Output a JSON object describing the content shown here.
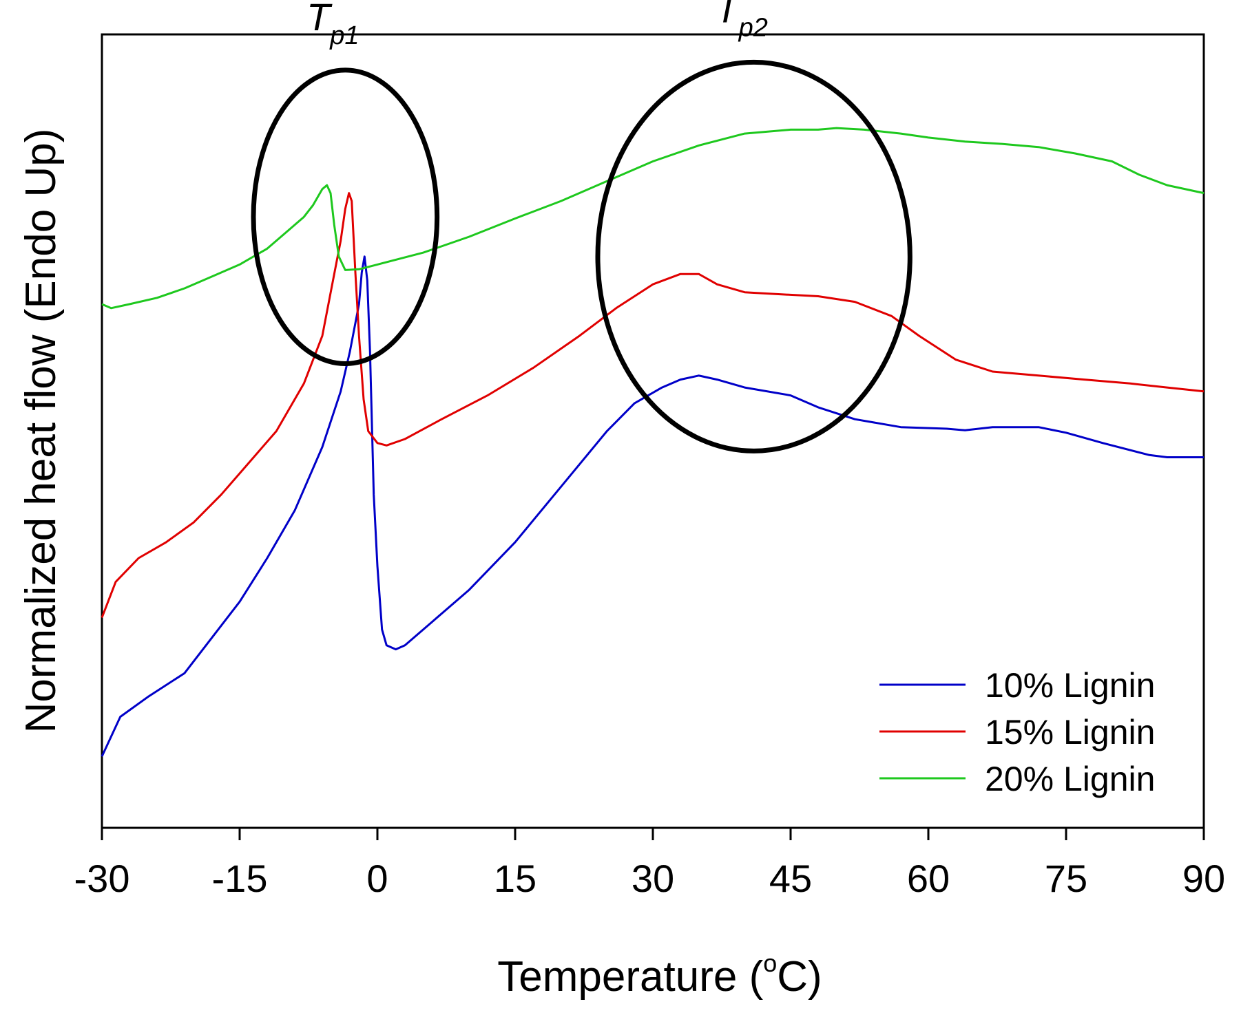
{
  "chart_data": {
    "type": "line",
    "title": "",
    "xlabel": "Temperature (°C)",
    "xlabel_parts": {
      "main": "Temperature (",
      "sup": "o",
      "unit": "C)"
    },
    "ylabel": "Normalized heat flow (Endo Up)",
    "ylabel_parts": {
      "pre": "Normalized heat flow ",
      "post": "(Endo Up)"
    },
    "xlim": [
      -30,
      90
    ],
    "ylim": [
      0,
      100
    ],
    "y_tick_labels_shown": false,
    "x_ticks": [
      -30,
      -15,
      0,
      15,
      30,
      45,
      60,
      75,
      90
    ],
    "x_tick_labels": [
      "-30",
      "-15",
      "0",
      "15",
      "30",
      "45",
      "60",
      "75",
      "90"
    ],
    "grid": false,
    "legend_position": "bottom-right",
    "series": [
      {
        "name": "10% Lignin",
        "color": "#0000c8",
        "points": [
          [
            -30,
            9
          ],
          [
            -28,
            14
          ],
          [
            -25,
            16.5
          ],
          [
            -21,
            19.5
          ],
          [
            -18,
            24
          ],
          [
            -15,
            28.5
          ],
          [
            -12,
            34
          ],
          [
            -9,
            40
          ],
          [
            -6,
            48
          ],
          [
            -4,
            55
          ],
          [
            -3,
            60
          ],
          [
            -2,
            66
          ],
          [
            -1.7,
            70
          ],
          [
            -1.4,
            72
          ],
          [
            -1.1,
            69
          ],
          [
            -0.8,
            60
          ],
          [
            -0.4,
            42
          ],
          [
            0,
            33
          ],
          [
            0.5,
            25
          ],
          [
            1,
            23
          ],
          [
            2,
            22.5
          ],
          [
            3,
            23
          ],
          [
            6,
            26
          ],
          [
            10,
            30
          ],
          [
            15,
            36
          ],
          [
            20,
            43
          ],
          [
            25,
            50
          ],
          [
            28,
            53.5
          ],
          [
            31,
            55.5
          ],
          [
            33,
            56.5
          ],
          [
            35,
            57
          ],
          [
            37,
            56.5
          ],
          [
            40,
            55.5
          ],
          [
            45,
            54.5
          ],
          [
            48,
            53
          ],
          [
            52,
            51.5
          ],
          [
            57,
            50.5
          ],
          [
            62,
            50.3
          ],
          [
            64,
            50.1
          ],
          [
            67,
            50.5
          ],
          [
            72,
            50.5
          ],
          [
            75,
            49.8
          ],
          [
            79,
            48.5
          ],
          [
            84,
            47
          ],
          [
            86,
            46.7
          ],
          [
            90,
            46.7
          ]
        ]
      },
      {
        "name": "15% Lignin",
        "color": "#e00000",
        "points": [
          [
            -30,
            26.5
          ],
          [
            -28.5,
            31
          ],
          [
            -26,
            34
          ],
          [
            -23,
            36
          ],
          [
            -20,
            38.5
          ],
          [
            -17,
            42
          ],
          [
            -14,
            46
          ],
          [
            -11,
            50
          ],
          [
            -8,
            56
          ],
          [
            -6,
            62
          ],
          [
            -5,
            68
          ],
          [
            -4,
            74
          ],
          [
            -3.5,
            78
          ],
          [
            -3.1,
            80
          ],
          [
            -2.8,
            79
          ],
          [
            -2.4,
            70
          ],
          [
            -2,
            62
          ],
          [
            -1.5,
            54
          ],
          [
            -1,
            50
          ],
          [
            0,
            48.5
          ],
          [
            1,
            48.2
          ],
          [
            3,
            49
          ],
          [
            7,
            51.5
          ],
          [
            12,
            54.5
          ],
          [
            17,
            58
          ],
          [
            22,
            62
          ],
          [
            26,
            65.5
          ],
          [
            30,
            68.5
          ],
          [
            33,
            69.8
          ],
          [
            35,
            69.8
          ],
          [
            37,
            68.5
          ],
          [
            40,
            67.5
          ],
          [
            43,
            67.3
          ],
          [
            48,
            67
          ],
          [
            52,
            66.3
          ],
          [
            56,
            64.5
          ],
          [
            59,
            62
          ],
          [
            63,
            59
          ],
          [
            67,
            57.5
          ],
          [
            72,
            57
          ],
          [
            77,
            56.5
          ],
          [
            82,
            56
          ],
          [
            86,
            55.5
          ],
          [
            90,
            55
          ]
        ]
      },
      {
        "name": "20% Lignin",
        "color": "#1ec81e",
        "points": [
          [
            -30,
            66
          ],
          [
            -29,
            65.5
          ],
          [
            -27,
            66
          ],
          [
            -24,
            66.8
          ],
          [
            -21,
            68
          ],
          [
            -18,
            69.5
          ],
          [
            -15,
            71
          ],
          [
            -12,
            73
          ],
          [
            -10,
            75
          ],
          [
            -8,
            77
          ],
          [
            -7,
            78.5
          ],
          [
            -6,
            80.5
          ],
          [
            -5.5,
            81
          ],
          [
            -5.1,
            80
          ],
          [
            -4.7,
            76
          ],
          [
            -4.2,
            72
          ],
          [
            -3.5,
            70.3
          ],
          [
            -2,
            70.4
          ],
          [
            0,
            71
          ],
          [
            5,
            72.5
          ],
          [
            10,
            74.5
          ],
          [
            15,
            76.8
          ],
          [
            20,
            79
          ],
          [
            25,
            81.5
          ],
          [
            30,
            84
          ],
          [
            35,
            86
          ],
          [
            40,
            87.5
          ],
          [
            45,
            88
          ],
          [
            48,
            88
          ],
          [
            50,
            88.2
          ],
          [
            53,
            88
          ],
          [
            57,
            87.5
          ],
          [
            60,
            87
          ],
          [
            64,
            86.5
          ],
          [
            68,
            86.2
          ],
          [
            72,
            85.8
          ],
          [
            76,
            85
          ],
          [
            80,
            84
          ],
          [
            83,
            82.3
          ],
          [
            86,
            81
          ],
          [
            90,
            80
          ]
        ]
      }
    ],
    "annotations": [
      {
        "label": "T",
        "subscript": "p1",
        "circle_center": [
          -3.5,
          77
        ],
        "circle_radius_x": 10,
        "circle_radius_y": 18.5
      },
      {
        "label": "T",
        "subscript": "p2",
        "circle_center": [
          41,
          72
        ],
        "circle_radius_x": 17,
        "circle_radius_y": 24.5
      }
    ]
  }
}
